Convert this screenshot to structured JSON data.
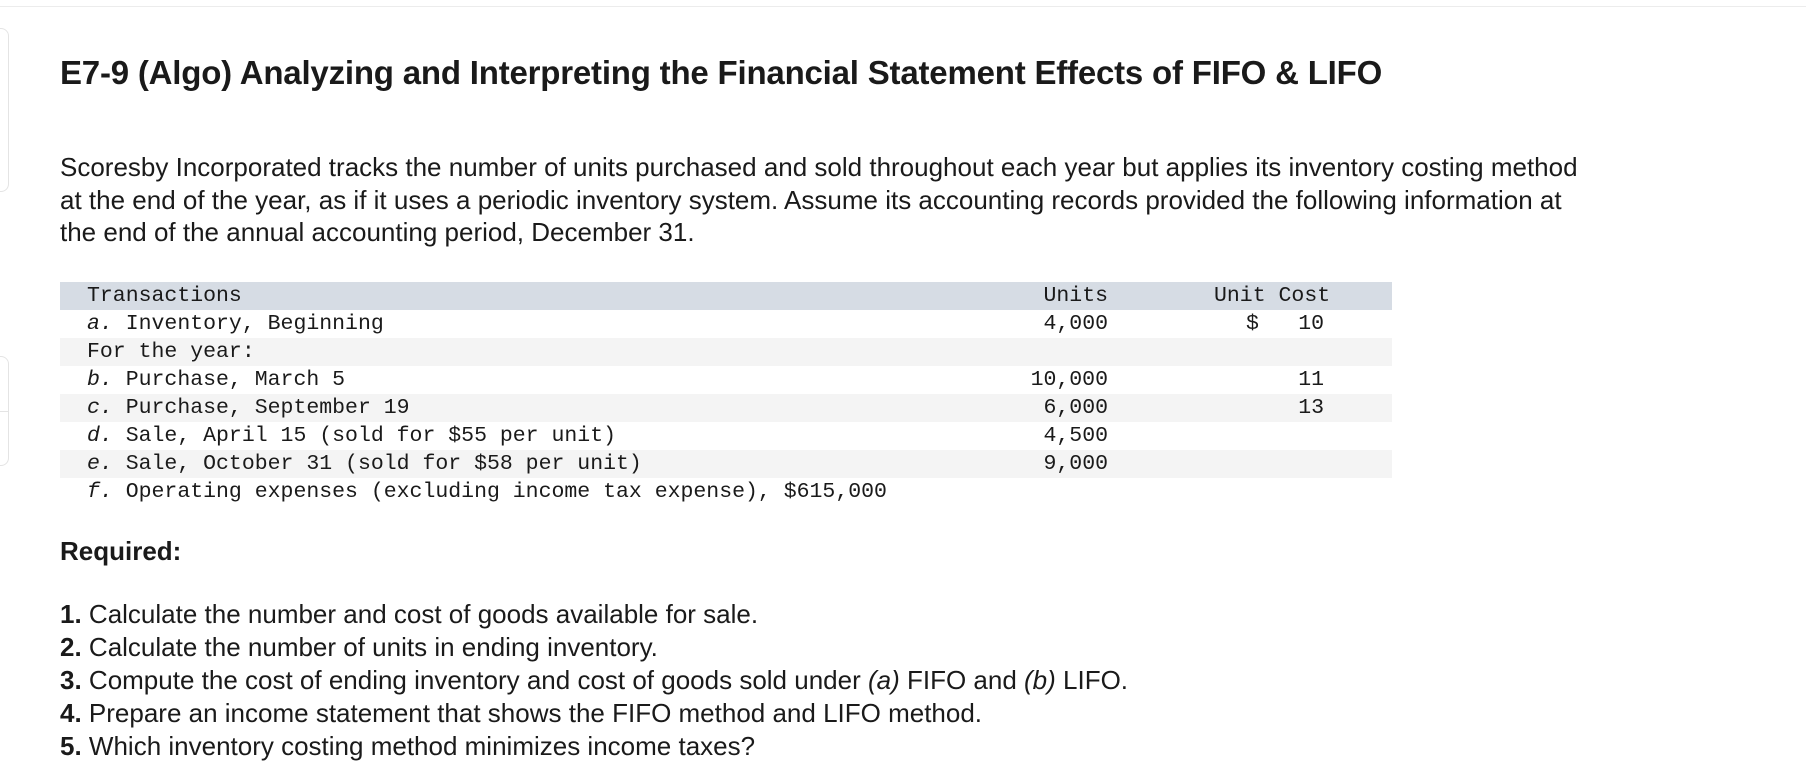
{
  "title": "E7-9 (Algo) Analyzing and Interpreting the Financial Statement Effects of FIFO & LIFO",
  "intro": {
    "line1": "Scoresby Incorporated tracks the number of units purchased and sold throughout each year but applies its inventory costing method",
    "line2": "at the end of the year, as if it uses a periodic inventory system. Assume its accounting records provided the following information at",
    "line3": "the end of the annual accounting period, December 31."
  },
  "table": {
    "headers": {
      "transactions": "Transactions",
      "units": "Units",
      "unit_cost": "Unit Cost"
    },
    "rows": [
      {
        "letter": "a.",
        "text": " Inventory, Beginning",
        "units": "4,000",
        "cost_symbol": "$",
        "cost": "10"
      },
      {
        "letter": "",
        "text": "For the year:",
        "units": "",
        "cost_symbol": "",
        "cost": ""
      },
      {
        "letter": "b.",
        "text": " Purchase, March 5",
        "units": "10,000",
        "cost_symbol": "",
        "cost": "11"
      },
      {
        "letter": "c.",
        "text": " Purchase, September 19",
        "units": "6,000",
        "cost_symbol": "",
        "cost": "13"
      },
      {
        "letter": "d.",
        "text": " Sale, April 15 (sold for $55 per unit)",
        "units": "4,500",
        "cost_symbol": "",
        "cost": ""
      },
      {
        "letter": "e.",
        "text": " Sale, October 31 (sold for $58 per unit)",
        "units": "9,000",
        "cost_symbol": "",
        "cost": ""
      },
      {
        "letter": "f.",
        "text": " Operating expenses (excluding income tax expense), $615,000",
        "units": "",
        "cost_symbol": "",
        "cost": ""
      }
    ]
  },
  "required": {
    "label": "Required:",
    "items": [
      {
        "num": "1.",
        "text": " Calculate the number and cost of goods available for sale."
      },
      {
        "num": "2.",
        "text": " Calculate the number of units in ending inventory."
      },
      {
        "num": "3.",
        "pre": " Compute the cost of ending inventory and cost of goods sold under ",
        "a": "(a)",
        "mid": " FIFO and ",
        "b": "(b)",
        "post": " LIFO."
      },
      {
        "num": "4.",
        "text": " Prepare an income statement that shows the FIFO method and LIFO method."
      },
      {
        "num": "5.",
        "text": " Which inventory costing method minimizes income taxes?"
      }
    ]
  },
  "colors": {
    "header_row": "#d6dce4",
    "shaded_row": "#f4f4f4",
    "text": "#1a1a1a"
  }
}
